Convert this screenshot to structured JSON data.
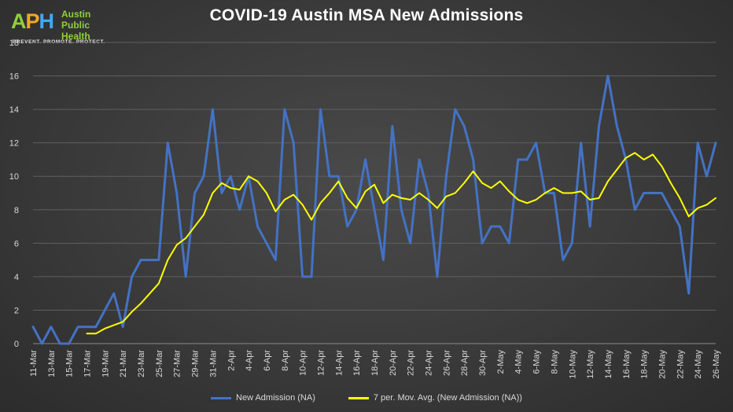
{
  "logo": {
    "mark_a": "A",
    "mark_p": "P",
    "mark_h": "H",
    "line1": "Austin",
    "line2": "Public",
    "line3": "Health",
    "tagline": "PREVENT. PROMOTE. PROTECT."
  },
  "chart_data": {
    "type": "line",
    "title": "COVID-19 Austin MSA New Admissions",
    "xlabel": "",
    "ylabel": "",
    "ylim": [
      0,
      18
    ],
    "yticks": [
      0,
      2,
      4,
      6,
      8,
      10,
      12,
      14,
      16,
      18
    ],
    "grid": true,
    "legend_position": "bottom",
    "x": [
      "11-Mar",
      "12-Mar",
      "13-Mar",
      "14-Mar",
      "15-Mar",
      "16-Mar",
      "17-Mar",
      "18-Mar",
      "19-Mar",
      "20-Mar",
      "21-Mar",
      "22-Mar",
      "23-Mar",
      "24-Mar",
      "25-Mar",
      "26-Mar",
      "27-Mar",
      "28-Mar",
      "29-Mar",
      "30-Mar",
      "31-Mar",
      "1-Apr",
      "2-Apr",
      "3-Apr",
      "4-Apr",
      "5-Apr",
      "6-Apr",
      "7-Apr",
      "8-Apr",
      "9-Apr",
      "10-Apr",
      "11-Apr",
      "12-Apr",
      "13-Apr",
      "14-Apr",
      "15-Apr",
      "16-Apr",
      "17-Apr",
      "18-Apr",
      "19-Apr",
      "20-Apr",
      "21-Apr",
      "22-Apr",
      "23-Apr",
      "24-Apr",
      "25-Apr",
      "26-Apr",
      "27-Apr",
      "28-Apr",
      "29-Apr",
      "30-Apr",
      "1-May",
      "2-May",
      "3-May",
      "4-May",
      "5-May",
      "6-May",
      "7-May",
      "8-May",
      "9-May",
      "10-May",
      "11-May",
      "12-May",
      "13-May",
      "14-May",
      "15-May",
      "16-May",
      "17-May",
      "18-May",
      "19-May",
      "20-May",
      "21-May",
      "22-May",
      "23-May",
      "24-May",
      "25-May",
      "26-May"
    ],
    "tick_labels": [
      "11-Mar",
      "13-Mar",
      "15-Mar",
      "17-Mar",
      "19-Mar",
      "21-Mar",
      "23-Mar",
      "25-Mar",
      "27-Mar",
      "29-Mar",
      "31-Mar",
      "2-Apr",
      "4-Apr",
      "6-Apr",
      "8-Apr",
      "10-Apr",
      "12-Apr",
      "14-Apr",
      "16-Apr",
      "18-Apr",
      "20-Apr",
      "22-Apr",
      "24-Apr",
      "26-Apr",
      "28-Apr",
      "30-Apr",
      "2-May",
      "4-May",
      "6-May",
      "8-May",
      "10-May",
      "12-May",
      "14-May",
      "16-May",
      "18-May",
      "20-May",
      "22-May",
      "24-May",
      "26-May"
    ],
    "series": [
      {
        "name": "New Admission (NA)",
        "color": "#4472c4",
        "values": [
          1,
          0,
          1,
          0,
          0,
          1,
          1,
          1,
          2,
          3,
          1,
          4,
          5,
          5,
          5,
          12,
          9,
          4,
          9,
          10,
          14,
          9,
          10,
          8,
          10,
          7,
          6,
          5,
          14,
          12,
          4,
          4,
          14,
          10,
          10,
          7,
          8,
          11,
          8,
          5,
          13,
          8,
          6,
          11,
          9,
          4,
          10,
          14,
          13,
          11,
          6,
          7,
          7,
          6,
          11,
          11,
          12,
          9,
          9,
          5,
          6,
          12,
          7,
          13,
          16,
          13,
          11,
          8,
          9,
          9,
          9,
          8,
          7,
          3,
          12,
          10,
          12
        ]
      },
      {
        "name": "7 per. Mov. Avg. (New Admission (NA))",
        "color": "#ffff00",
        "values": [
          null,
          null,
          null,
          null,
          null,
          null,
          0.6,
          0.6,
          0.9,
          1.1,
          1.3,
          1.9,
          2.4,
          3.0,
          3.6,
          5.0,
          5.9,
          6.3,
          7.0,
          7.7,
          9.0,
          9.6,
          9.3,
          9.2,
          10.0,
          9.7,
          9.0,
          7.9,
          8.6,
          8.9,
          8.3,
          7.4,
          8.4,
          9.0,
          9.7,
          8.7,
          8.1,
          9.1,
          9.5,
          8.4,
          8.9,
          8.7,
          8.6,
          9.0,
          8.6,
          8.1,
          8.8,
          9.0,
          9.6,
          10.3,
          9.6,
          9.3,
          9.7,
          9.1,
          8.6,
          8.4,
          8.6,
          9.0,
          9.3,
          9.0,
          9.0,
          9.1,
          8.6,
          8.7,
          9.7,
          10.4,
          11.1,
          11.4,
          11.0,
          11.3,
          10.6,
          9.6,
          8.7,
          7.6,
          8.1,
          8.3,
          8.7
        ]
      }
    ]
  }
}
